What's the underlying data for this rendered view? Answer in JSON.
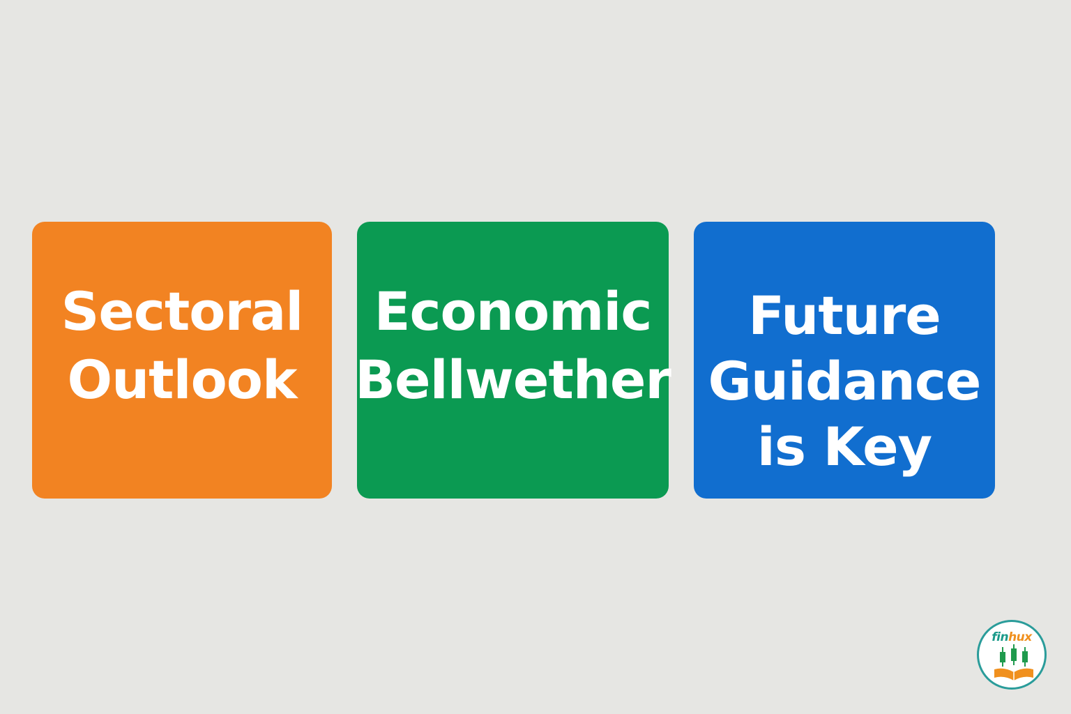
{
  "cards": [
    {
      "lines": [
        "Sectoral",
        "Outlook"
      ],
      "color": "#f28322"
    },
    {
      "lines": [
        "Economic",
        "Bellwether"
      ],
      "color": "#0b9a52"
    },
    {
      "lines": [
        "Future",
        "Guidance",
        "is Key"
      ],
      "color": "#116ecf"
    }
  ],
  "logo": {
    "text_part1": "fin",
    "text_part2": "hux",
    "color_part1": "#1a9a8a",
    "color_part2": "#f0901e",
    "icon": "candlestick-book-icon"
  },
  "colors": {
    "background": "#e6e6e3",
    "logo_ring": "#2a9c9a",
    "candle": "#1f9a4d",
    "book": "#f0901e"
  }
}
